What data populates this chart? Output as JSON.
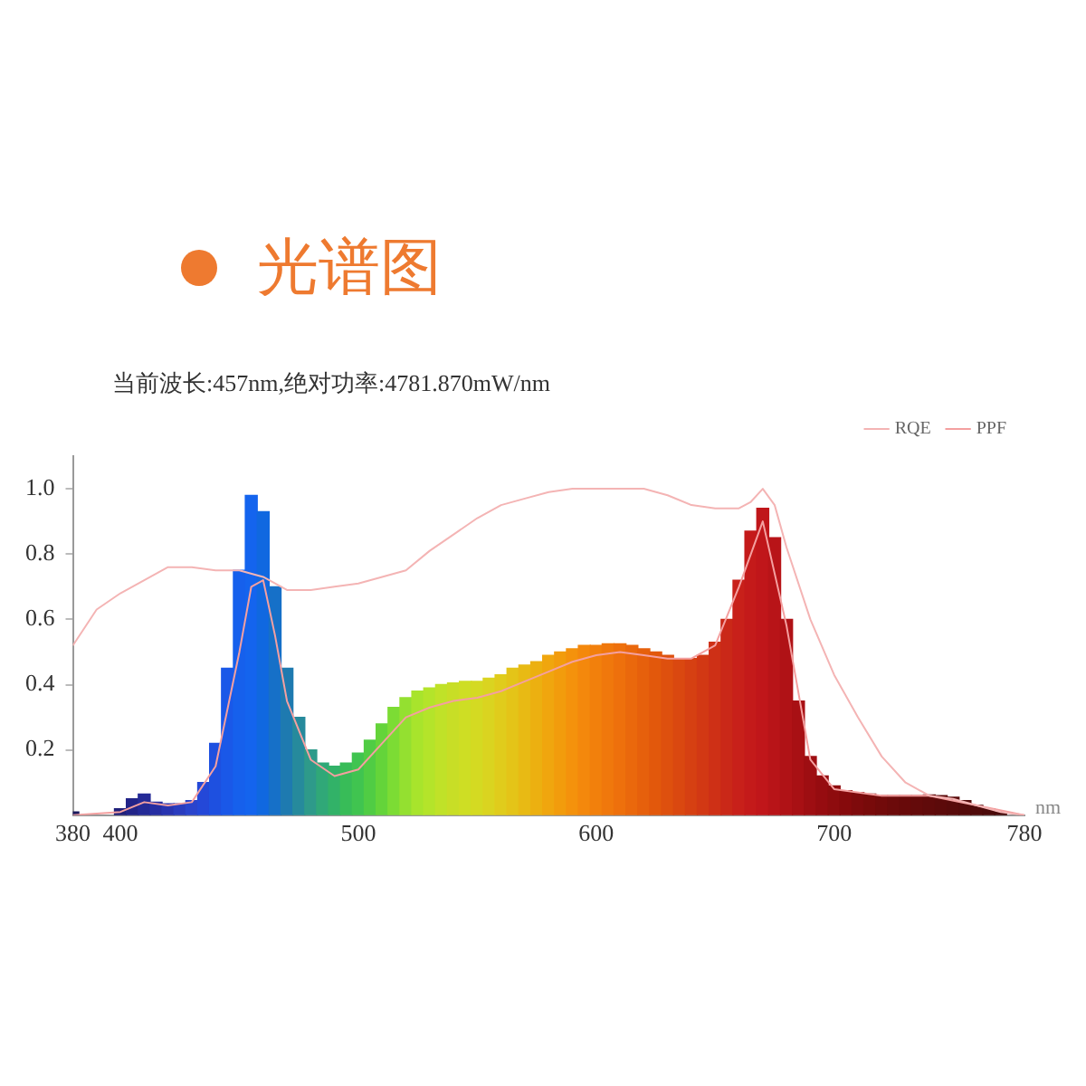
{
  "chart_data": {
    "type": "bar",
    "title": "光谱图",
    "subtitle": "当前波长:457nm,绝对功率:4781.870mW/nm",
    "xlabel": "nm",
    "x": [
      380,
      385,
      390,
      395,
      400,
      405,
      410,
      415,
      420,
      425,
      430,
      435,
      440,
      445,
      450,
      455,
      460,
      465,
      470,
      475,
      480,
      485,
      490,
      495,
      500,
      505,
      510,
      515,
      520,
      525,
      530,
      535,
      540,
      545,
      550,
      555,
      560,
      565,
      570,
      575,
      580,
      585,
      590,
      595,
      600,
      605,
      610,
      615,
      620,
      625,
      630,
      635,
      640,
      645,
      650,
      655,
      660,
      665,
      670,
      675,
      680,
      685,
      690,
      695,
      700,
      705,
      710,
      715,
      720,
      725,
      730,
      735,
      740,
      745,
      750,
      755,
      760,
      765,
      770,
      775,
      780
    ],
    "series": [
      {
        "values": [
          0.01,
          null,
          null,
          null,
          0.02,
          0.05,
          0.065,
          0.04,
          0.035,
          0.035,
          0.045,
          0.1,
          0.22,
          0.45,
          0.75,
          0.98,
          0.93,
          0.7,
          0.45,
          0.3,
          0.2,
          0.16,
          0.15,
          0.16,
          0.19,
          0.23,
          0.28,
          0.33,
          0.36,
          0.38,
          0.39,
          0.4,
          0.405,
          0.41,
          0.41,
          0.42,
          0.43,
          0.45,
          0.46,
          0.47,
          0.49,
          0.5,
          0.51,
          0.52,
          0.52,
          0.525,
          0.525,
          0.52,
          0.51,
          0.5,
          0.49,
          0.48,
          0.48,
          0.49,
          0.53,
          0.6,
          0.72,
          0.87,
          0.94,
          0.85,
          0.6,
          0.35,
          0.18,
          0.12,
          0.09,
          0.075,
          0.07,
          0.065,
          0.06,
          0.06,
          0.06,
          0.06,
          0.062,
          0.06,
          0.055,
          0.045,
          0.03,
          0.02,
          0.01,
          null,
          0
        ],
        "colors": [
          "#1a1a5e",
          "#1a1a62",
          "#1c1c68",
          "#1e1e70",
          "#20207a",
          "#222488",
          "#242a96",
          "#262ea2",
          "#2834b0",
          "#2a3cbe",
          "#2a44cc",
          "#2448d8",
          "#1e50e0",
          "#1a58e8",
          "#1660ec",
          "#1464ee",
          "#1068e0",
          "#1670c8",
          "#1e7ab0",
          "#268a9c",
          "#2e9a8a",
          "#30a878",
          "#32b268",
          "#38bc58",
          "#40c450",
          "#50cc44",
          "#64d43a",
          "#7cdc34",
          "#94e030",
          "#a8e42c",
          "#b4e42a",
          "#c0e228",
          "#c8de26",
          "#cede24",
          "#d4da22",
          "#dad420",
          "#e0cc1c",
          "#e4c418",
          "#e8ba14",
          "#ecb010",
          "#f0a60e",
          "#f29c0c",
          "#f4920c",
          "#f4880c",
          "#f2800c",
          "#f0780c",
          "#ee700c",
          "#ea680c",
          "#e6600c",
          "#e2580c",
          "#de500e",
          "#da4810",
          "#d64012",
          "#d23814",
          "#ce3016",
          "#ca2818",
          "#c8201a",
          "#c41a1a",
          "#c0161a",
          "#b81418",
          "#b01216",
          "#a81014",
          "#9e0e12",
          "#960c10",
          "#8e0c0e",
          "#860a0c",
          "#7e0a0c",
          "#780a0a",
          "#720a0a",
          "#6c0a0a",
          "#680a0a",
          "#640a0a",
          "#600a0a",
          "#5c0a0a",
          "#580a0a",
          "#540a0a",
          "#500a0a",
          "#4c0a0a",
          "#480a0a",
          "#440a0a",
          "#400a0a"
        ]
      },
      {
        "type": "line",
        "name": "RQE",
        "color": "#f4b4b4",
        "x": [
          380,
          390,
          400,
          410,
          420,
          430,
          440,
          450,
          460,
          470,
          480,
          490,
          500,
          510,
          520,
          530,
          540,
          550,
          560,
          570,
          580,
          590,
          600,
          610,
          620,
          630,
          640,
          650,
          660,
          665,
          670,
          675,
          680,
          690,
          700,
          710,
          720,
          730,
          740,
          750,
          760,
          770,
          780
        ],
        "values": [
          0.52,
          0.63,
          0.68,
          0.72,
          0.76,
          0.76,
          0.75,
          0.75,
          0.73,
          0.69,
          0.69,
          0.7,
          0.71,
          0.73,
          0.75,
          0.81,
          0.86,
          0.91,
          0.95,
          0.97,
          0.99,
          1.0,
          1.0,
          1.0,
          1.0,
          0.98,
          0.95,
          0.94,
          0.94,
          0.96,
          1.0,
          0.95,
          0.82,
          0.6,
          0.43,
          0.3,
          0.18,
          0.1,
          0.06,
          0.05,
          0.03,
          0.01,
          0
        ]
      },
      {
        "type": "line",
        "name": "PPF",
        "color": "#f4a0a0",
        "x": [
          380,
          400,
          410,
          420,
          430,
          440,
          450,
          455,
          460,
          465,
          470,
          480,
          490,
          500,
          510,
          520,
          530,
          540,
          550,
          560,
          570,
          580,
          590,
          600,
          610,
          620,
          630,
          640,
          650,
          660,
          670,
          680,
          690,
          700,
          720,
          740,
          760,
          780
        ],
        "values": [
          0,
          0.01,
          0.04,
          0.03,
          0.04,
          0.15,
          0.5,
          0.7,
          0.72,
          0.55,
          0.35,
          0.17,
          0.12,
          0.14,
          0.22,
          0.3,
          0.33,
          0.35,
          0.36,
          0.38,
          0.41,
          0.44,
          0.47,
          0.49,
          0.5,
          0.49,
          0.48,
          0.48,
          0.52,
          0.7,
          0.9,
          0.58,
          0.17,
          0.08,
          0.06,
          0.06,
          0.03,
          0
        ]
      }
    ],
    "xlim": [
      380,
      780
    ],
    "xticks": [
      380,
      400,
      500,
      600,
      700,
      780
    ],
    "ylim": [
      0,
      1.1
    ],
    "yticks": [
      0.2,
      0.4,
      0.6,
      0.8,
      {
        "value": 1,
        "label": "1.0"
      }
    ],
    "legend": "top right",
    "marker": "none",
    "line_style": "solid"
  }
}
